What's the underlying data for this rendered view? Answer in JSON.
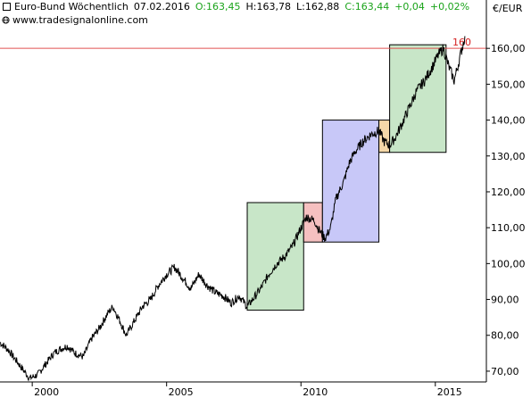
{
  "header": {
    "instrument": "Euro-Bund Wöchentlich",
    "date": "07.02.2016",
    "open": "O:163,45",
    "high": "H:163,78",
    "low": "L:162,88",
    "close": "C:163,44",
    "change": "+0,04",
    "change_pct": "+0,02%",
    "website": "www.tradesignalonline.com",
    "unit": "€/EUR"
  },
  "colors": {
    "price_line": "#000000",
    "resistance_line": "#e05050",
    "zone_green": "#c8e6c8",
    "zone_red": "#f5c0c0",
    "zone_blue": "#c8c8f8",
    "zone_orange": "#f5d8a8",
    "change_green": "#1aa31a"
  },
  "chart_data": {
    "type": "line",
    "title": "",
    "xlabel": "",
    "ylabel": "€/EUR",
    "x_ticks": [
      "2000",
      "2005",
      "2010",
      "2015"
    ],
    "y_ticks": [
      "70,00",
      "80,00",
      "90,00",
      "100,00",
      "110,00",
      "120,00",
      "130,00",
      "140,00",
      "150,00",
      "160,00"
    ],
    "ylim": [
      67,
      169
    ],
    "xlim": [
      1998.8,
      2016.9
    ],
    "grid": false,
    "series": [
      {
        "x": [
          1998.8,
          1999.1,
          1999.4,
          1999.7,
          1999.9,
          2000.2,
          2000.5,
          2000.8,
          2001.0,
          2001.3,
          2001.6,
          2001.9,
          2002.2,
          2002.5,
          2002.8,
          2003.0,
          2003.2,
          2003.5,
          2003.8,
          2004.1,
          2004.4,
          2004.7,
          2005.0,
          2005.3,
          2005.6,
          2005.9,
          2006.2,
          2006.5,
          2006.8,
          2007.1,
          2007.4,
          2007.7,
          2008.0,
          2008.3,
          2008.5,
          2008.8,
          2009.1,
          2009.4,
          2009.7,
          2010.0,
          2010.2,
          2010.5,
          2010.7,
          2010.9,
          2011.1,
          2011.3,
          2011.6,
          2011.8,
          2012.0,
          2012.3,
          2012.6,
          2012.9,
          2013.1,
          2013.3,
          2013.5,
          2013.7,
          2014.0,
          2014.3,
          2014.6,
          2014.9,
          2015.1,
          2015.3,
          2015.5,
          2015.7,
          2015.9,
          2016.1
        ],
        "values": [
          78,
          76,
          73,
          70,
          68,
          69,
          72,
          75,
          76,
          77,
          75,
          74,
          79,
          82,
          86,
          88,
          85,
          80,
          84,
          88,
          90,
          94,
          97,
          99,
          96,
          93,
          97,
          94,
          92,
          91,
          89,
          91,
          88,
          91,
          93,
          97,
          100,
          102,
          105,
          110,
          113,
          112,
          109,
          107,
          110,
          118,
          123,
          128,
          131,
          134,
          136,
          137,
          134,
          133,
          135,
          138,
          143,
          148,
          151,
          155,
          158,
          160,
          155,
          151,
          157,
          163.4
        ]
      }
    ],
    "zones": [
      {
        "x_start": 2008.0,
        "x_end": 2010.1,
        "y_low": 87,
        "y_high": 117,
        "color": "green"
      },
      {
        "x_start": 2010.1,
        "x_end": 2010.8,
        "y_low": 106,
        "y_high": 117,
        "color": "red"
      },
      {
        "x_start": 2010.8,
        "x_end": 2012.9,
        "y_low": 106,
        "y_high": 140,
        "color": "blue"
      },
      {
        "x_start": 2012.9,
        "x_end": 2013.3,
        "y_low": 131,
        "y_high": 140,
        "color": "orange"
      },
      {
        "x_start": 2013.3,
        "x_end": 2015.4,
        "y_low": 131,
        "y_high": 161,
        "color": "green"
      }
    ],
    "resistance": {
      "value": 160,
      "label": "160"
    }
  }
}
